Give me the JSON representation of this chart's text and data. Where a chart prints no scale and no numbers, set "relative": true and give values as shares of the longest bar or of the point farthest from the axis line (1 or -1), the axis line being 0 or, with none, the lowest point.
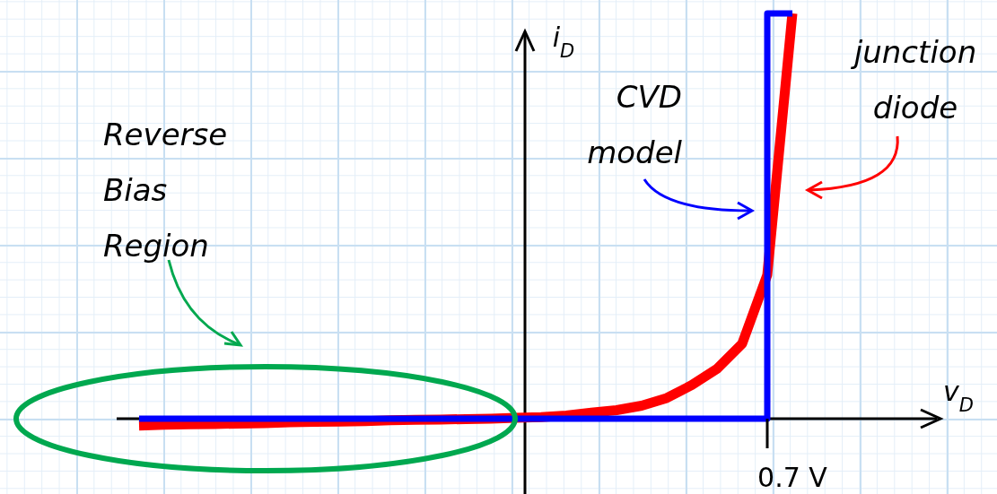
{
  "chart_data": {
    "type": "line",
    "relative": true,
    "ylabel": "i$_{D}$",
    "annotations": [
      "Reverse Bias Region",
      {
        "text": "0.7 V"
      },
      "v$_{D}$"
    ],
    "categories": [
      null,
      null,
      null,
      null,
      null,
      null,
      null,
      null,
      null,
      null,
      null,
      null,
      null,
      null,
      null,
      null,
      null,
      null,
      null,
      null,
      null,
      null,
      null,
      null,
      null,
      null,
      null
    ],
    "series": [
      {
        "name": "CVD model",
        "type": "step",
        "color": "#0000ff",
        "values": [
          0,
          0,
          0,
          0,
          0,
          0,
          0,
          0,
          0,
          0,
          0,
          0,
          0,
          0,
          0,
          0,
          0,
          0,
          0,
          0,
          0,
          0,
          0,
          0,
          0,
          0,
          1
        ]
      },
      {
        "name": "junction diode",
        "color": "#ff0000",
        "values": [
          -0.017,
          -0.015,
          -0.014,
          -0.013,
          -0.012,
          -0.011,
          -0.009,
          -0.008,
          -0.007,
          -0.006,
          -0.004,
          -0.003,
          -0.002,
          -0.001,
          0,
          0.002,
          0.004,
          0.008,
          0.015,
          0.021,
          0.032,
          0.051,
          0.083,
          0.123,
          0.185,
          0.355,
          1
        ]
      }
    ]
  }
}
